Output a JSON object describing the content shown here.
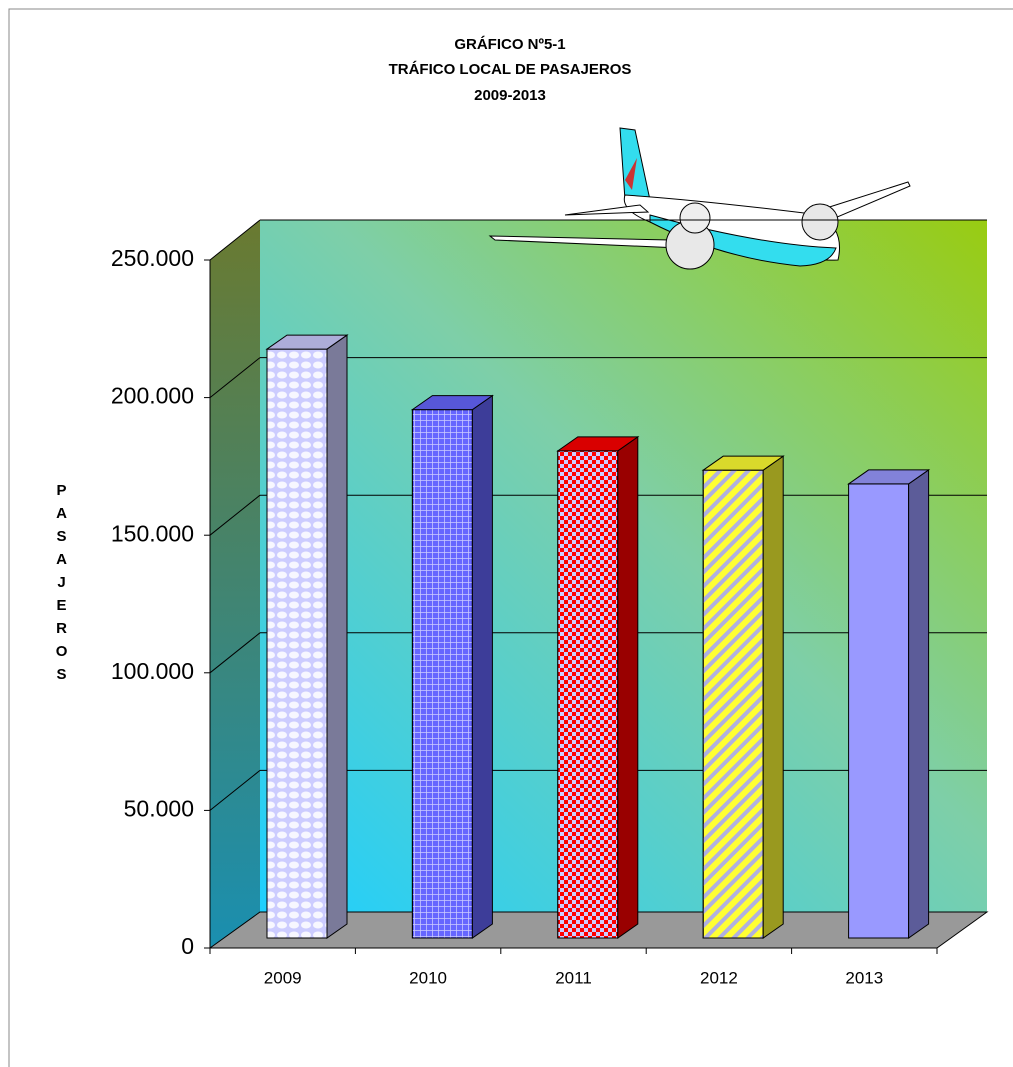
{
  "chart_data": {
    "type": "bar3d",
    "title": [
      "GRÁFICO Nº5-1",
      "TRÁFICO LOCAL DE PASAJEROS",
      "2009-2013"
    ],
    "y_label": "PASAJEROS",
    "categories": [
      "2009",
      "2010",
      "2011",
      "2012",
      "2013"
    ],
    "values": [
      214000,
      192000,
      177000,
      170000,
      165000
    ],
    "colors": [
      "#ccccff",
      "#6666ff",
      "#ff0000",
      "#ffff33",
      "#9999ff"
    ],
    "ylim": [
      0,
      250000
    ],
    "yticks": [
      0,
      {
        "value": 50000,
        "label": "50.000"
      },
      {
        "value": 100000,
        "label": "100.000"
      },
      {
        "value": 150000,
        "label": "150.000"
      },
      {
        "value": 200000,
        "label": "200.000"
      },
      {
        "value": 250000,
        "label": "250.000"
      }
    ],
    "grid": true
  }
}
